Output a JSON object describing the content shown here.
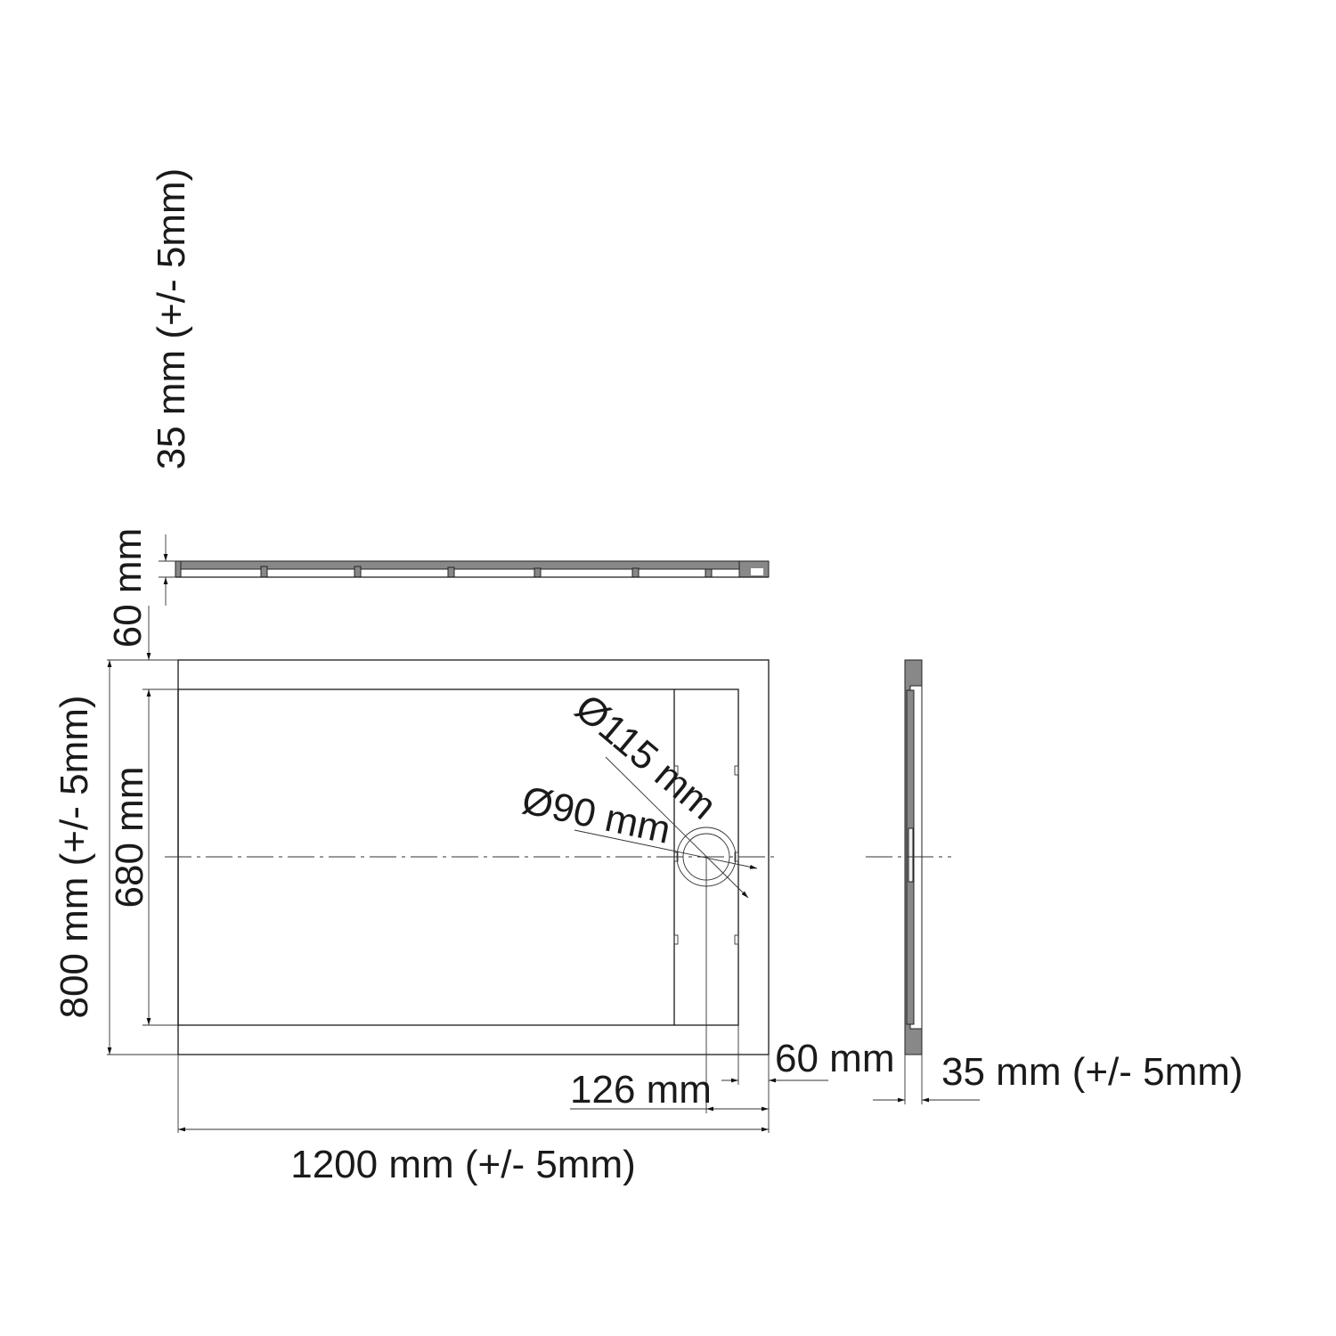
{
  "dimensions": {
    "width": "1200 mm (+/- 5mm)",
    "depth": "800 mm (+/- 5mm)",
    "inner_depth": "680 mm",
    "top_margin": "60 mm",
    "tray_height_top": "35 mm (+/- 5mm)",
    "right_margin": "60 mm",
    "drain_offset": "126 mm",
    "tray_height_side": "35 mm (+/- 5mm)",
    "drain_outer": "Ø115 mm",
    "drain_inner": "Ø90 mm"
  }
}
